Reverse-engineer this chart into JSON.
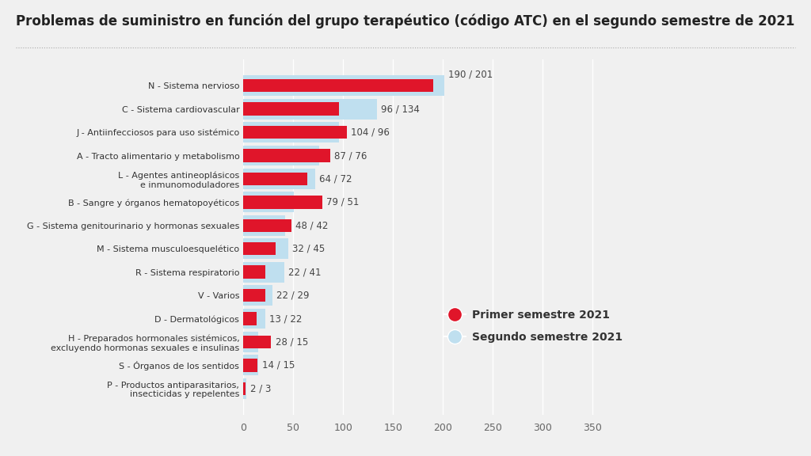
{
  "title": "Problemas de suministro en función del grupo terapéutico (código ATC) en el segundo semestre de 2021",
  "categories": [
    "P - Productos antiparasitarios,\ninsecticidas y repelentes",
    "S - Órganos de los sentidos",
    "H - Preparados hormonales sistémicos,\nexcluyendo hormonas sexuales e insulinas",
    "D - Dermatológicos",
    "V - Varios",
    "R - Sistema respiratorio",
    "M - Sistema musculoesquelético",
    "G - Sistema genitourinario y hormonas sexuales",
    "B - Sangre y órganos hematopoyéticos",
    "L - Agentes antineoplásicos\ne inmunomoduladores",
    "A - Tracto alimentario y metabolismo",
    "J - Antiinfecciosos para uso sistémico",
    "C - Sistema cardiovascular",
    "N - Sistema nervioso"
  ],
  "first_semester": [
    2,
    14,
    28,
    13,
    22,
    22,
    32,
    48,
    79,
    64,
    87,
    104,
    96,
    190
  ],
  "second_semester": [
    3,
    15,
    15,
    22,
    29,
    41,
    45,
    42,
    51,
    72,
    76,
    96,
    134,
    201
  ],
  "labels": [
    "2 / 3",
    "14 / 15",
    "28 / 15",
    "13 / 22",
    "22 / 29",
    "22 / 41",
    "32 / 45",
    "48 / 42",
    "79 / 51",
    "64 / 72",
    "87 / 76",
    "104 / 96",
    "96 / 134",
    "190 / 201"
  ],
  "color_red": "#E0152A",
  "color_blue": "#BFDFEF",
  "background_color": "#F0F0F0",
  "title_fontsize": 12,
  "legend_label_1": "Primer semestre 2021",
  "legend_label_2": "Segundo semestre 2021",
  "xlim": [
    0,
    390
  ],
  "xticks": [
    0,
    50,
    100,
    150,
    200,
    250,
    300,
    350
  ]
}
